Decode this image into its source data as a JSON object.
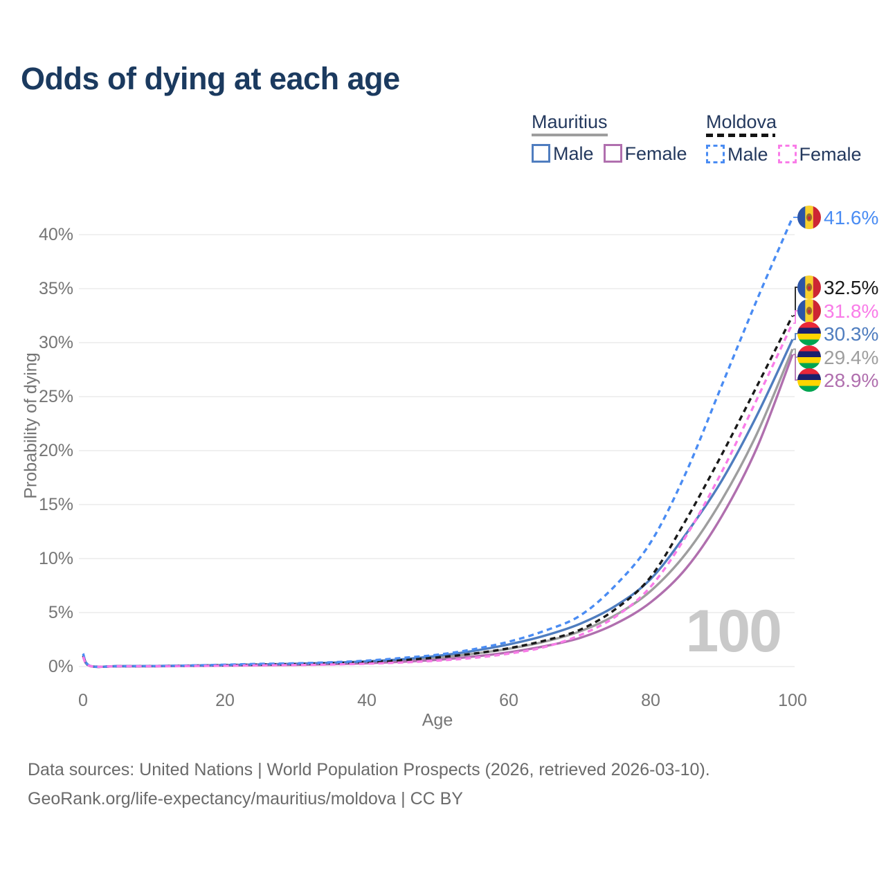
{
  "title": "Odds of dying at each age",
  "legend": {
    "sections": [
      {
        "country": "Mauritius",
        "line_style": "solid",
        "underline_color": "#9e9e9e",
        "items": [
          {
            "label": "Male",
            "color": "#4f7dbf",
            "dashed": false
          },
          {
            "label": "Female",
            "color": "#b06fae",
            "dashed": false
          }
        ]
      },
      {
        "country": "Moldova",
        "line_style": "dashed",
        "underline_color": "#141414",
        "items": [
          {
            "label": "Male",
            "color": "#4a8cf3",
            "dashed": true
          },
          {
            "label": "Female",
            "color": "#f97ce8",
            "dashed": true
          }
        ]
      }
    ]
  },
  "chart_data": {
    "type": "line",
    "title": "Odds of dying at each age",
    "xlabel": "Age",
    "ylabel": "Probability of dying",
    "x_ticks": [
      0,
      20,
      40,
      60,
      80,
      100
    ],
    "y_tick_labels": [
      "0%",
      "5%",
      "10%",
      "15%",
      "20%",
      "25%",
      "30%",
      "35%",
      "40%"
    ],
    "xlim": [
      0,
      100
    ],
    "ylim_percent": [
      0,
      43
    ],
    "grid": "horizontal",
    "legend_position": "top-right",
    "watermark": "100",
    "ages": [
      0,
      1,
      5,
      10,
      15,
      20,
      25,
      30,
      35,
      40,
      45,
      50,
      55,
      60,
      65,
      70,
      75,
      80,
      85,
      90,
      95,
      100
    ],
    "series": [
      {
        "name": "Mauritius Total",
        "country": "Mauritius",
        "sex": "Both",
        "color": "#9e9e9e",
        "dashed": false,
        "flag": "mauritius",
        "end_label": "29.4%",
        "values": [
          1.0,
          0.05,
          0.03,
          0.04,
          0.08,
          0.12,
          0.17,
          0.21,
          0.29,
          0.4,
          0.57,
          0.82,
          1.18,
          1.65,
          2.3,
          3.25,
          4.75,
          7.0,
          10.5,
          15.4,
          21.6,
          29.4
        ]
      },
      {
        "name": "Mauritius Female",
        "country": "Mauritius",
        "sex": "Female",
        "color": "#b06fae",
        "dashed": false,
        "flag": "mauritius",
        "end_label": "28.9%",
        "values": [
          0.9,
          0.05,
          0.03,
          0.03,
          0.06,
          0.09,
          0.13,
          0.16,
          0.22,
          0.31,
          0.45,
          0.63,
          0.92,
          1.32,
          1.88,
          2.65,
          3.95,
          5.95,
          9.1,
          13.9,
          20.3,
          28.9
        ]
      },
      {
        "name": "Mauritius Male",
        "country": "Mauritius",
        "sex": "Male",
        "color": "#4f7dbf",
        "dashed": false,
        "flag": "mauritius",
        "end_label": "30.3%",
        "values": [
          1.1,
          0.06,
          0.04,
          0.05,
          0.09,
          0.14,
          0.2,
          0.26,
          0.35,
          0.48,
          0.68,
          1.0,
          1.45,
          2.05,
          2.85,
          3.95,
          5.6,
          8.1,
          12.3,
          17.2,
          23.3,
          30.3
        ]
      },
      {
        "name": "Moldova Total",
        "country": "Moldova",
        "sex": "Both",
        "color": "#1a1a1a",
        "dashed": true,
        "flag": "moldova",
        "end_label": "32.5%",
        "values": [
          1.0,
          0.05,
          0.03,
          0.04,
          0.08,
          0.12,
          0.18,
          0.22,
          0.3,
          0.42,
          0.6,
          0.85,
          1.2,
          1.7,
          2.4,
          3.4,
          5.3,
          8.3,
          13.6,
          19.6,
          26.0,
          32.5
        ]
      },
      {
        "name": "Moldova Male",
        "country": "Moldova",
        "sex": "Male",
        "color": "#4a8cf3",
        "dashed": true,
        "flag": "moldova",
        "end_label": "41.6%",
        "values": [
          1.2,
          0.06,
          0.04,
          0.05,
          0.1,
          0.17,
          0.25,
          0.3,
          0.4,
          0.55,
          0.8,
          1.1,
          1.6,
          2.3,
          3.3,
          4.7,
          7.5,
          11.5,
          18.0,
          26.0,
          34.0,
          41.6
        ]
      },
      {
        "name": "Moldova Female",
        "country": "Moldova",
        "sex": "Female",
        "color": "#f97ce8",
        "dashed": true,
        "flag": "moldova",
        "end_label": "31.8%",
        "values": [
          0.9,
          0.05,
          0.03,
          0.03,
          0.05,
          0.08,
          0.11,
          0.14,
          0.19,
          0.27,
          0.38,
          0.55,
          0.8,
          1.2,
          1.8,
          2.9,
          4.6,
          7.4,
          12.1,
          18.0,
          24.8,
          31.8
        ]
      }
    ]
  },
  "flag_colors": {
    "moldova": {
      "blue": "#2c55a6",
      "yellow": "#f8d12c",
      "red": "#cd2633",
      "emblem": "#9a6b2e"
    },
    "mauritius": {
      "red": "#ea2839",
      "blue": "#1a206d",
      "yellow": "#ffd500",
      "green": "#00a551"
    }
  },
  "footer": {
    "line1": "Data sources: United Nations | World Population Prospects (2026, retrieved 2026-03-10).",
    "line2": "GeoRank.org/life-expectancy/mauritius/moldova | CC BY"
  }
}
